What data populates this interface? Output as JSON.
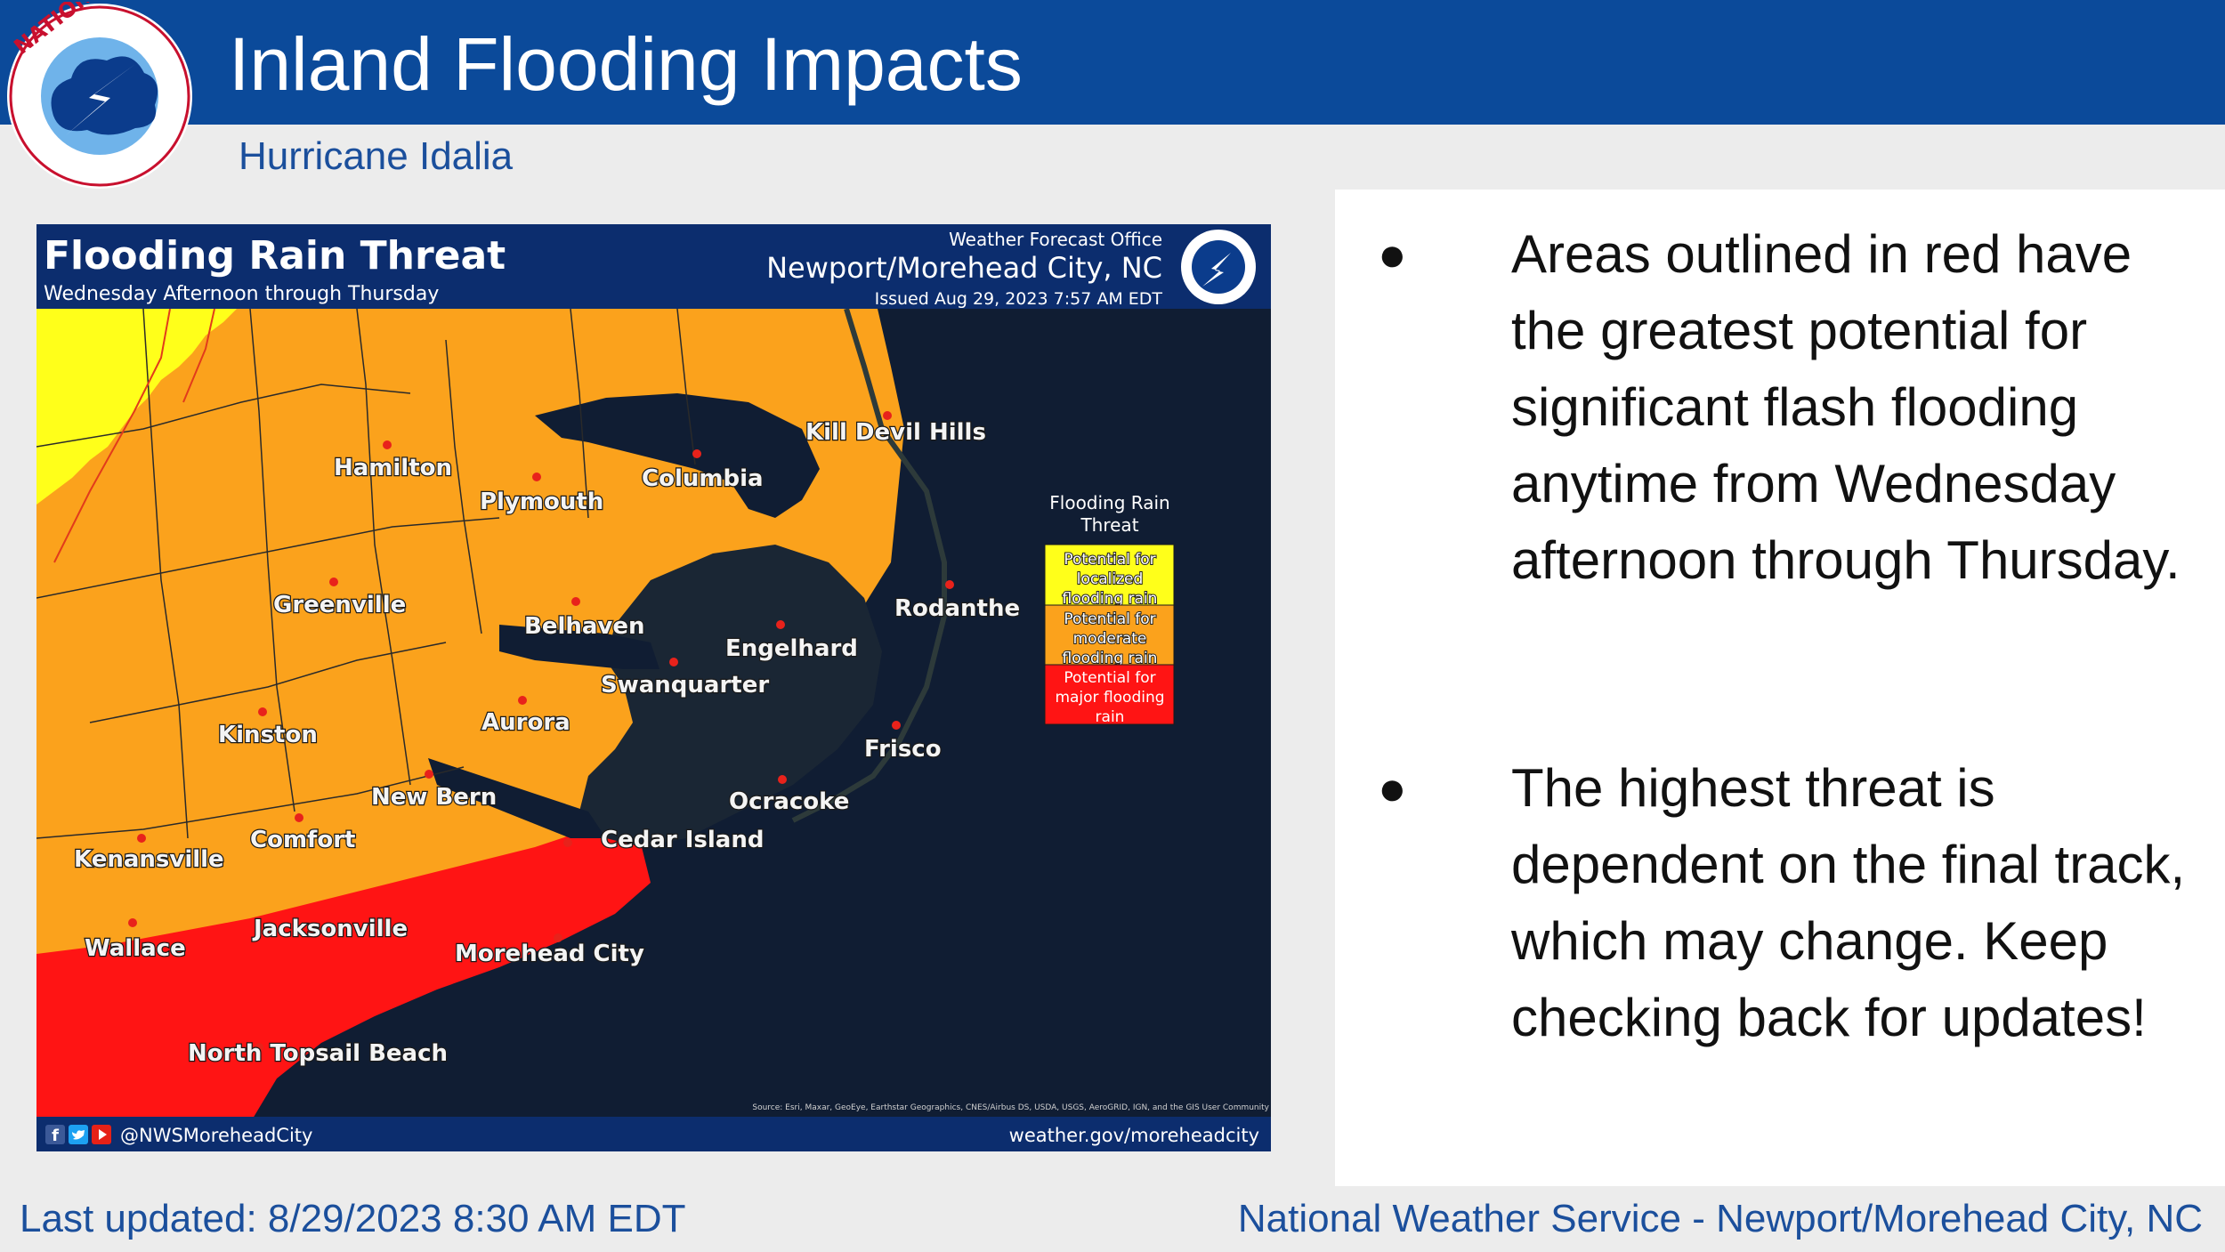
{
  "header": {
    "title": "Inland Flooding Impacts",
    "subtitle": "Hurricane Idalia",
    "logo_text": "NATIONAL WEATHER SERVICE"
  },
  "map": {
    "title": "Flooding Rain Threat",
    "period": "Wednesday Afternoon through Thursday",
    "office_label": "Weather Forecast Office",
    "office_name": "Newport/Morehead City, NC",
    "issued": "Issued Aug 29, 2023 7:57 AM EDT",
    "source_credit": "Source: Esri, Maxar, GeoEye, Earthstar Geographics, CNES/Airbus DS, USDA, USGS, AeroGRID, IGN, and the GIS User Community",
    "social_handle": "@NWSMoreheadCity",
    "website": "weather.gov/moreheadcity",
    "legend": {
      "title_line1": "Flooding Rain",
      "title_line2": "Threat",
      "items": [
        {
          "line1": "Potential for",
          "line2": "localized",
          "line3": "flooding rain",
          "color": "#ffff00"
        },
        {
          "line1": "Potential for",
          "line2": "moderate",
          "line3": "flooding rain",
          "color": "#ffa31a"
        },
        {
          "line1": "Potential for",
          "line2": "major flooding",
          "line3": "rain",
          "color": "#ff1a1a"
        }
      ]
    },
    "cities": [
      {
        "name": "Kill Devil Hills"
      },
      {
        "name": "Hamilton"
      },
      {
        "name": "Columbia"
      },
      {
        "name": "Plymouth"
      },
      {
        "name": "Rodanthe"
      },
      {
        "name": "Greenville"
      },
      {
        "name": "Belhaven"
      },
      {
        "name": "Engelhard"
      },
      {
        "name": "Swanquarter"
      },
      {
        "name": "Aurora"
      },
      {
        "name": "Kinston"
      },
      {
        "name": "Frisco"
      },
      {
        "name": "New Bern"
      },
      {
        "name": "Ocracoke"
      },
      {
        "name": "Comfort"
      },
      {
        "name": "Cedar Island"
      },
      {
        "name": "Kenansville"
      },
      {
        "name": "Jacksonville"
      },
      {
        "name": "Wallace"
      },
      {
        "name": "Morehead City"
      },
      {
        "name": "North Topsail Beach"
      }
    ]
  },
  "bullets": [
    {
      "text": "Areas outlined in red have the greatest potential for significant flash flooding anytime from Wednesday afternoon through Thursday."
    },
    {
      "text": "The highest threat is dependent on the final track, which may change. Keep checking back for updates!"
    }
  ],
  "footer": {
    "last_updated": "Last updated: 8/29/2023 8:30 AM EDT",
    "agency": "National Weather Service - Newport/Morehead City, NC"
  }
}
